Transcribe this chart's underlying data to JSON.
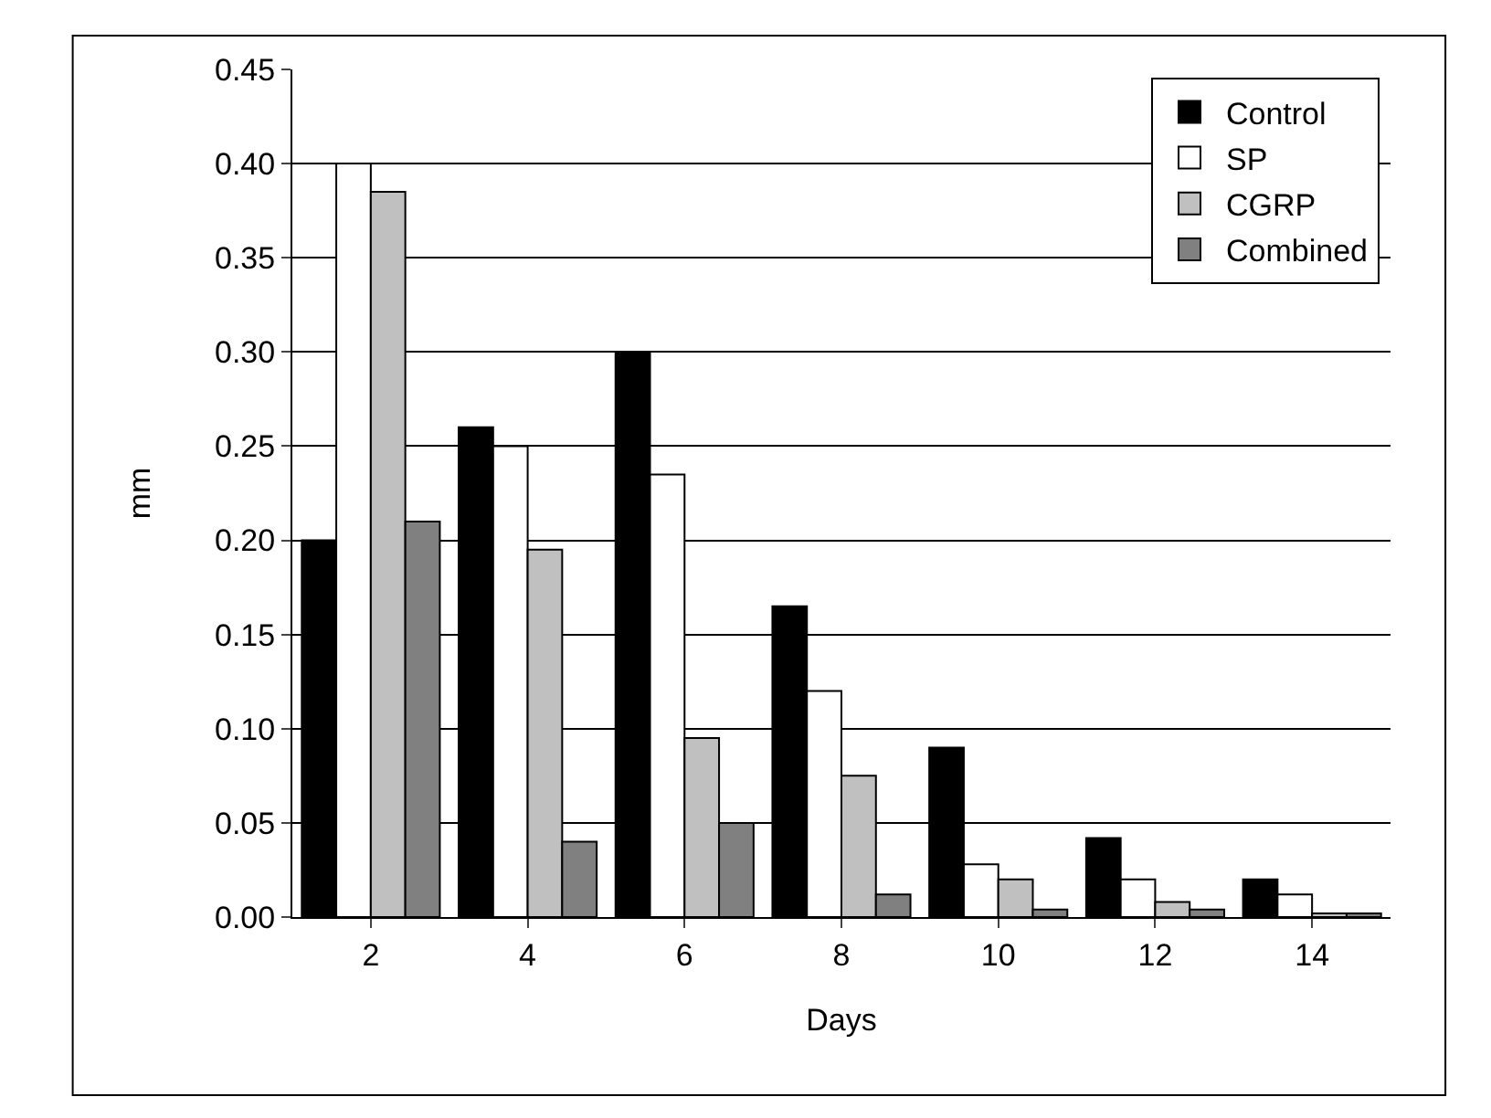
{
  "chart_data": {
    "type": "bar",
    "xlabel": "Days",
    "ylabel": "mm",
    "categories": [
      "2",
      "4",
      "6",
      "8",
      "10",
      "12",
      "14"
    ],
    "series": [
      {
        "name": "Control",
        "color": "#000000",
        "values": [
          0.2,
          0.26,
          0.3,
          0.165,
          0.09,
          0.042,
          0.02
        ]
      },
      {
        "name": "SP",
        "color": "#ffffff",
        "values": [
          0.4,
          0.25,
          0.235,
          0.12,
          0.028,
          0.02,
          0.012
        ]
      },
      {
        "name": "CGRP",
        "color": "#c0c0c0",
        "values": [
          0.385,
          0.195,
          0.095,
          0.075,
          0.02,
          0.008,
          0.002
        ]
      },
      {
        "name": "Combined",
        "color": "#808080",
        "values": [
          0.21,
          0.04,
          0.05,
          0.012,
          0.004,
          0.004,
          0.002
        ]
      }
    ],
    "ylim": [
      0,
      0.45
    ],
    "yticks": [
      {
        "value": 0,
        "label": "0.00"
      },
      {
        "value": 0.05,
        "label": "0.05"
      },
      {
        "value": 0.1,
        "label": "0.10"
      },
      {
        "value": 0.15,
        "label": "0.15"
      },
      {
        "value": 0.2,
        "label": "0.20"
      },
      {
        "value": 0.25,
        "label": "0.25"
      },
      {
        "value": 0.3,
        "label": "0.30"
      },
      {
        "value": 0.35,
        "label": "0.35"
      },
      {
        "value": 0.4,
        "label": "0.40"
      },
      {
        "value": 0.45,
        "label": "0.45"
      }
    ],
    "grid": "y",
    "legend": "top right"
  }
}
